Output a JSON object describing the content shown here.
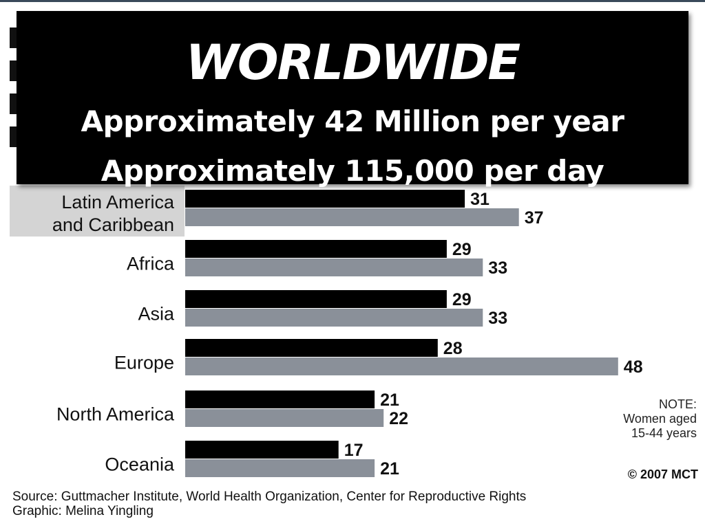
{
  "banner": {
    "title": "WORLDWIDE",
    "line1": "Approximately 42 Million per year",
    "line2": "Approximately 115,000 per day"
  },
  "chart_data": {
    "type": "bar",
    "orientation": "horizontal",
    "categories": [
      "Latin America\nand Caribbean",
      "Africa",
      "Asia",
      "Europe",
      "North America",
      "Oceania"
    ],
    "series": [
      {
        "values": [
          31,
          29,
          29,
          28,
          21,
          17
        ],
        "color": "#000000"
      },
      {
        "values": [
          37,
          33,
          33,
          48,
          22,
          21
        ],
        "color": "#8a9099"
      }
    ],
    "highlighted_category": "Latin America\nand Caribbean",
    "grid": false
  },
  "note": {
    "heading": "NOTE:",
    "line1": "Women aged",
    "line2": "15-44 years"
  },
  "credit": "© 2007 MCT",
  "source": {
    "line1": "Source: Guttmacher Institute, World Health Organization, Center for Reproductive Rights",
    "line2": "Graphic: Melina Yingling"
  }
}
